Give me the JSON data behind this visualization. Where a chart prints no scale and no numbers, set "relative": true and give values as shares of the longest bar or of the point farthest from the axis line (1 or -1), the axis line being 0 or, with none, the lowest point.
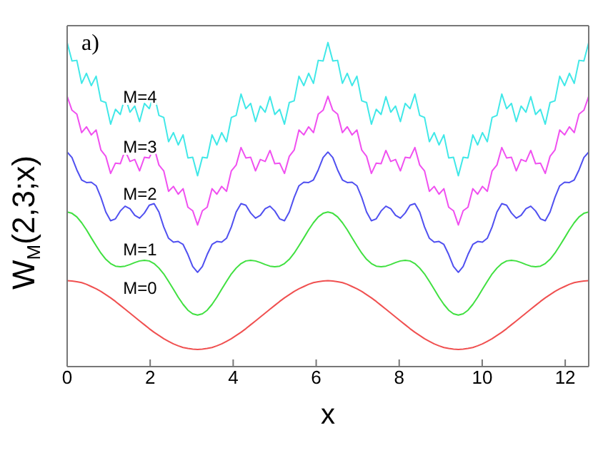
{
  "chart_data": {
    "type": "line",
    "xlabel": "x",
    "ylabel": "W$_{M}$(2,3;x)",
    "annotations": [
      "a)"
    ],
    "relative": true,
    "xlim": [
      0,
      12.566
    ],
    "xticks": [
      0,
      2,
      4,
      6,
      8,
      10,
      12
    ],
    "x": [
      0,
      0.116,
      0.233,
      0.349,
      0.465,
      0.582,
      0.698,
      0.814,
      0.931,
      1.047,
      1.164,
      1.28,
      1.396,
      1.513,
      1.629,
      1.745,
      1.862,
      1.978,
      2.094,
      2.211,
      2.327,
      2.443,
      2.56,
      2.676,
      2.793,
      2.909,
      3.025,
      3.142,
      3.258,
      3.374,
      3.491,
      3.607,
      3.723,
      3.84,
      3.956,
      4.072,
      4.189,
      4.305,
      4.421,
      4.538,
      4.654,
      4.771,
      4.887,
      5.003,
      5.12,
      5.236,
      5.352,
      5.469,
      5.585,
      5.701,
      5.818,
      5.934,
      6.05,
      6.167,
      6.283,
      6.4,
      6.516,
      6.632,
      6.749,
      6.865,
      6.981,
      7.098,
      7.214,
      7.33,
      7.447,
      7.563,
      7.679,
      7.796,
      7.912,
      8.029,
      8.145,
      8.261,
      8.378,
      8.494,
      8.61,
      8.727,
      8.843,
      8.959,
      9.076,
      9.192,
      9.308,
      9.425,
      9.541,
      9.657,
      9.774,
      9.89,
      10.006,
      10.123,
      10.239,
      10.355,
      10.472,
      10.588,
      10.704,
      10.821,
      10.937,
      11.054,
      11.17,
      11.286,
      11.403,
      11.519,
      11.635,
      11.752,
      11.868,
      11.984,
      12.101,
      12.217,
      12.333,
      12.45,
      12.566
    ],
    "series": [
      {
        "name": "M=0",
        "color": "#f05050",
        "values": [
          0.265,
          0.264,
          0.262,
          0.259,
          0.254,
          0.247,
          0.24,
          0.232,
          0.222,
          0.212,
          0.201,
          0.189,
          0.177,
          0.165,
          0.153,
          0.141,
          0.129,
          0.117,
          0.106,
          0.096,
          0.086,
          0.078,
          0.07,
          0.064,
          0.059,
          0.056,
          0.054,
          0.053,
          0.054,
          0.056,
          0.059,
          0.064,
          0.07,
          0.078,
          0.086,
          0.096,
          0.106,
          0.117,
          0.129,
          0.141,
          0.153,
          0.165,
          0.177,
          0.189,
          0.201,
          0.212,
          0.222,
          0.232,
          0.24,
          0.247,
          0.254,
          0.259,
          0.262,
          0.264,
          0.265,
          0.264,
          0.262,
          0.259,
          0.254,
          0.247,
          0.24,
          0.232,
          0.222,
          0.212,
          0.201,
          0.189,
          0.177,
          0.165,
          0.153,
          0.141,
          0.129,
          0.117,
          0.106,
          0.096,
          0.086,
          0.078,
          0.07,
          0.064,
          0.059,
          0.056,
          0.054,
          0.053,
          0.054,
          0.056,
          0.059,
          0.064,
          0.07,
          0.078,
          0.086,
          0.096,
          0.106,
          0.117,
          0.129,
          0.141,
          0.153,
          0.165,
          0.177,
          0.189,
          0.201,
          0.212,
          0.222,
          0.232,
          0.24,
          0.247,
          0.254,
          0.259,
          0.262,
          0.264,
          0.265
        ]
      },
      {
        "name": "M=1",
        "color": "#40e040",
        "values": [
          0.477,
          0.473,
          0.462,
          0.444,
          0.422,
          0.397,
          0.373,
          0.35,
          0.331,
          0.318,
          0.31,
          0.308,
          0.31,
          0.315,
          0.321,
          0.326,
          0.328,
          0.326,
          0.318,
          0.304,
          0.286,
          0.263,
          0.239,
          0.214,
          0.192,
          0.174,
          0.163,
          0.159,
          0.163,
          0.174,
          0.192,
          0.214,
          0.239,
          0.263,
          0.286,
          0.304,
          0.318,
          0.326,
          0.328,
          0.326,
          0.321,
          0.315,
          0.31,
          0.308,
          0.31,
          0.318,
          0.331,
          0.35,
          0.373,
          0.397,
          0.422,
          0.444,
          0.462,
          0.473,
          0.477,
          0.473,
          0.462,
          0.444,
          0.422,
          0.397,
          0.373,
          0.35,
          0.331,
          0.318,
          0.31,
          0.308,
          0.31,
          0.315,
          0.321,
          0.326,
          0.328,
          0.326,
          0.318,
          0.304,
          0.286,
          0.263,
          0.239,
          0.214,
          0.192,
          0.174,
          0.163,
          0.159,
          0.163,
          0.174,
          0.192,
          0.214,
          0.239,
          0.263,
          0.286,
          0.304,
          0.318,
          0.326,
          0.328,
          0.326,
          0.321,
          0.315,
          0.31,
          0.308,
          0.31,
          0.318,
          0.331,
          0.35,
          0.373,
          0.397,
          0.422,
          0.444,
          0.462,
          0.473,
          0.477
        ]
      },
      {
        "name": "M=2",
        "color": "#5050f0",
        "values": [
          0.662,
          0.645,
          0.607,
          0.576,
          0.568,
          0.569,
          0.558,
          0.522,
          0.477,
          0.45,
          0.456,
          0.48,
          0.495,
          0.487,
          0.467,
          0.458,
          0.474,
          0.498,
          0.503,
          0.477,
          0.431,
          0.396,
          0.384,
          0.386,
          0.377,
          0.346,
          0.309,
          0.291,
          0.309,
          0.346,
          0.377,
          0.386,
          0.384,
          0.396,
          0.431,
          0.477,
          0.503,
          0.498,
          0.474,
          0.458,
          0.467,
          0.487,
          0.495,
          0.48,
          0.456,
          0.45,
          0.477,
          0.522,
          0.558,
          0.569,
          0.568,
          0.576,
          0.607,
          0.645,
          0.662,
          0.645,
          0.607,
          0.576,
          0.568,
          0.569,
          0.558,
          0.522,
          0.477,
          0.45,
          0.456,
          0.48,
          0.495,
          0.487,
          0.467,
          0.458,
          0.474,
          0.498,
          0.503,
          0.477,
          0.431,
          0.396,
          0.384,
          0.386,
          0.377,
          0.346,
          0.309,
          0.291,
          0.309,
          0.346,
          0.377,
          0.386,
          0.384,
          0.396,
          0.431,
          0.477,
          0.503,
          0.498,
          0.474,
          0.458,
          0.467,
          0.487,
          0.495,
          0.48,
          0.456,
          0.45,
          0.477,
          0.522,
          0.558,
          0.569,
          0.568,
          0.576,
          0.607,
          0.645,
          0.662
        ]
      },
      {
        "name": "M=3",
        "color": "#f050f0",
        "values": [
          0.834,
          0.791,
          0.779,
          0.722,
          0.74,
          0.715,
          0.73,
          0.668,
          0.649,
          0.596,
          0.628,
          0.626,
          0.667,
          0.633,
          0.639,
          0.604,
          0.646,
          0.644,
          0.676,
          0.622,
          0.604,
          0.541,
          0.556,
          0.532,
          0.549,
          0.492,
          0.481,
          0.437,
          0.481,
          0.492,
          0.549,
          0.532,
          0.556,
          0.541,
          0.604,
          0.622,
          0.676,
          0.644,
          0.646,
          0.604,
          0.639,
          0.633,
          0.667,
          0.626,
          0.628,
          0.596,
          0.649,
          0.668,
          0.73,
          0.715,
          0.74,
          0.722,
          0.779,
          0.791,
          0.834,
          0.791,
          0.779,
          0.722,
          0.74,
          0.715,
          0.73,
          0.668,
          0.649,
          0.596,
          0.628,
          0.626,
          0.667,
          0.633,
          0.639,
          0.604,
          0.646,
          0.644,
          0.676,
          0.622,
          0.604,
          0.541,
          0.556,
          0.532,
          0.549,
          0.492,
          0.481,
          0.437,
          0.481,
          0.492,
          0.549,
          0.532,
          0.556,
          0.541,
          0.604,
          0.622,
          0.676,
          0.644,
          0.646,
          0.604,
          0.639,
          0.633,
          0.667,
          0.626,
          0.628,
          0.596,
          0.649,
          0.668,
          0.73,
          0.715,
          0.74,
          0.722,
          0.779,
          0.791,
          0.834
        ]
      },
      {
        "name": "M=4",
        "color": "#40e8e8",
        "values": [
          1,
          0.943,
          0.945,
          0.874,
          0.905,
          0.867,
          0.896,
          0.82,
          0.815,
          0.748,
          0.794,
          0.778,
          0.833,
          0.785,
          0.804,
          0.756,
          0.812,
          0.796,
          0.841,
          0.775,
          0.769,
          0.694,
          0.722,
          0.684,
          0.715,
          0.644,
          0.646,
          0.589,
          0.646,
          0.644,
          0.715,
          0.684,
          0.722,
          0.694,
          0.769,
          0.775,
          0.841,
          0.796,
          0.812,
          0.756,
          0.804,
          0.785,
          0.833,
          0.778,
          0.794,
          0.748,
          0.815,
          0.82,
          0.896,
          0.867,
          0.905,
          0.874,
          0.945,
          0.943,
          1,
          0.943,
          0.945,
          0.874,
          0.905,
          0.867,
          0.896,
          0.82,
          0.815,
          0.748,
          0.794,
          0.778,
          0.833,
          0.785,
          0.804,
          0.756,
          0.812,
          0.796,
          0.841,
          0.775,
          0.769,
          0.694,
          0.722,
          0.684,
          0.715,
          0.644,
          0.646,
          0.589,
          0.646,
          0.644,
          0.715,
          0.684,
          0.722,
          0.694,
          0.769,
          0.775,
          0.841,
          0.796,
          0.812,
          0.756,
          0.804,
          0.785,
          0.833,
          0.778,
          0.794,
          0.748,
          0.815,
          0.82,
          0.896,
          0.867,
          0.905,
          0.874,
          0.945,
          0.943,
          1
        ]
      }
    ]
  }
}
